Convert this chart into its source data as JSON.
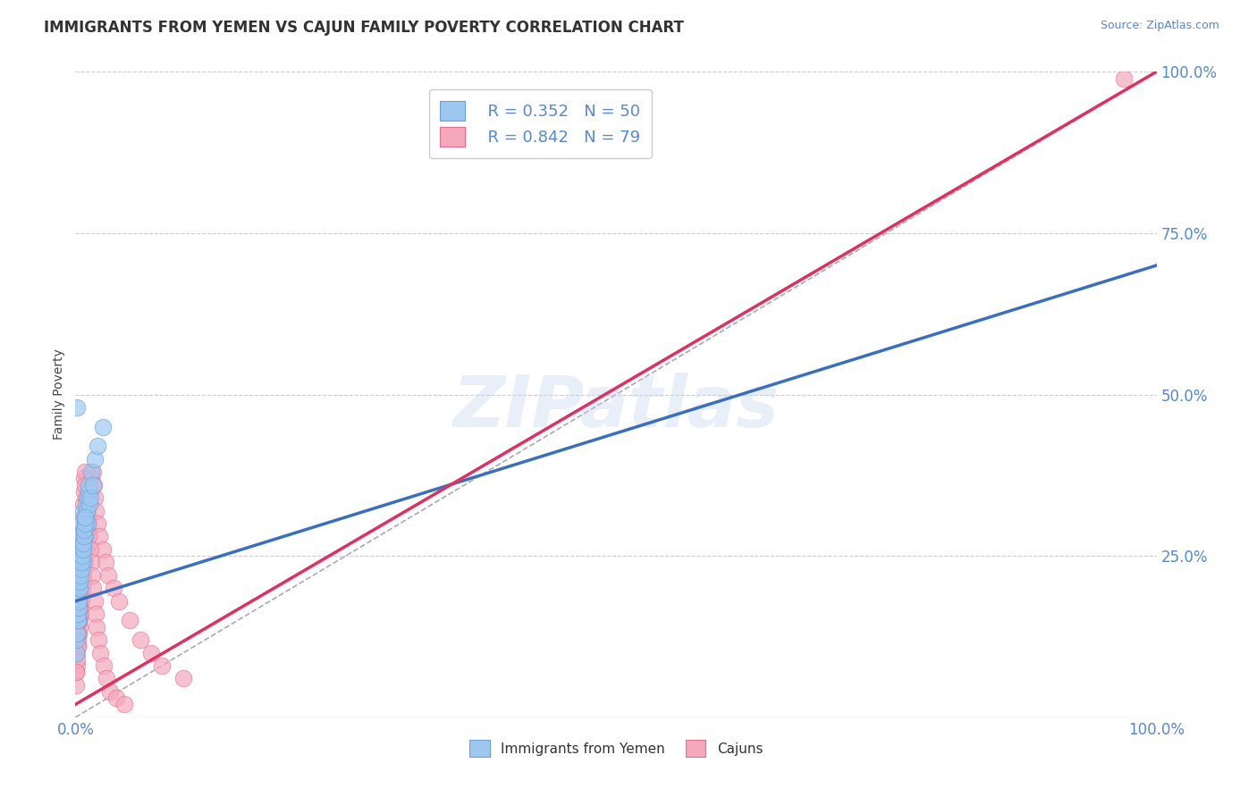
{
  "title": "IMMIGRANTS FROM YEMEN VS CAJUN FAMILY POVERTY CORRELATION CHART",
  "source_text": "Source: ZipAtlas.com",
  "ylabel": "Family Poverty",
  "background_color": "#ffffff",
  "grid_color": "#cccccc",
  "watermark_text": "ZIPatlas",
  "xlim": [
    0,
    100
  ],
  "ylim": [
    0,
    100
  ],
  "yticks": [
    25,
    50,
    75,
    100
  ],
  "xticks": [
    0,
    100
  ],
  "tick_color": "#5588cc",
  "series": [
    {
      "name": "Immigrants from Yemen",
      "R": 0.352,
      "N": 50,
      "color": "#9ec8f0",
      "edge_color": "#6aa0d8",
      "regression_color": "#3a6fbe",
      "points_x": [
        0.1,
        0.2,
        0.15,
        0.3,
        0.25,
        0.4,
        0.35,
        0.5,
        0.45,
        0.6,
        0.55,
        0.7,
        0.65,
        0.8,
        0.75,
        0.9,
        0.85,
        1.0,
        0.95,
        1.1,
        1.05,
        1.2,
        1.15,
        1.3,
        1.25,
        1.5,
        1.4,
        1.8,
        1.6,
        2.0,
        0.05,
        0.08,
        0.12,
        0.18,
        0.22,
        0.28,
        0.32,
        0.38,
        0.42,
        0.48,
        0.52,
        0.58,
        0.62,
        0.68,
        0.72,
        0.78,
        0.82,
        0.88,
        0.92,
        2.5
      ],
      "points_y": [
        20.0,
        15.0,
        48.0,
        18.0,
        22.0,
        20.0,
        25.0,
        23.0,
        28.0,
        27.0,
        30.0,
        24.0,
        26.0,
        29.0,
        32.0,
        31.0,
        28.0,
        30.0,
        33.0,
        34.0,
        32.0,
        35.0,
        30.0,
        33.0,
        36.0,
        38.0,
        34.0,
        40.0,
        36.0,
        42.0,
        10.0,
        12.0,
        13.0,
        15.0,
        16.0,
        17.0,
        18.0,
        20.0,
        21.0,
        22.0,
        23.0,
        24.0,
        25.0,
        26.0,
        27.0,
        28.0,
        29.0,
        30.0,
        31.0,
        45.0
      ]
    },
    {
      "name": "Cajuns",
      "R": 0.842,
      "N": 79,
      "color": "#f5a8bc",
      "edge_color": "#e07090",
      "regression_color": "#e03060",
      "points_x": [
        0.1,
        0.15,
        0.2,
        0.25,
        0.3,
        0.35,
        0.4,
        0.45,
        0.5,
        0.55,
        0.6,
        0.65,
        0.7,
        0.75,
        0.8,
        0.85,
        0.9,
        0.95,
        1.0,
        1.1,
        1.2,
        1.3,
        1.4,
        1.5,
        1.6,
        1.7,
        1.8,
        1.9,
        2.0,
        2.2,
        2.5,
        2.8,
        3.0,
        3.5,
        4.0,
        5.0,
        6.0,
        7.0,
        8.0,
        10.0,
        0.08,
        0.12,
        0.18,
        0.22,
        0.28,
        0.32,
        0.38,
        0.42,
        0.48,
        0.52,
        0.58,
        0.62,
        0.68,
        0.72,
        0.78,
        0.82,
        0.88,
        0.92,
        0.98,
        1.05,
        1.15,
        1.25,
        1.35,
        1.45,
        1.55,
        1.65,
        1.75,
        1.85,
        1.95,
        2.1,
        2.3,
        2.6,
        2.9,
        3.2,
        3.8,
        4.5,
        0.05,
        0.07,
        97.0
      ],
      "points_y": [
        8.0,
        10.0,
        11.0,
        12.0,
        13.0,
        14.0,
        15.0,
        16.0,
        17.0,
        18.0,
        19.0,
        20.0,
        21.0,
        22.0,
        23.0,
        24.0,
        25.0,
        26.0,
        27.0,
        29.0,
        31.0,
        33.0,
        35.0,
        37.0,
        38.0,
        36.0,
        34.0,
        32.0,
        30.0,
        28.0,
        26.0,
        24.0,
        22.0,
        20.0,
        18.0,
        15.0,
        12.0,
        10.0,
        8.0,
        6.0,
        7.0,
        9.0,
        11.0,
        13.0,
        15.0,
        17.0,
        19.0,
        21.0,
        23.0,
        25.0,
        27.0,
        29.0,
        31.0,
        33.0,
        35.0,
        37.0,
        38.0,
        36.0,
        34.0,
        32.0,
        30.0,
        28.0,
        26.0,
        24.0,
        22.0,
        20.0,
        18.0,
        16.0,
        14.0,
        12.0,
        10.0,
        8.0,
        6.0,
        4.0,
        3.0,
        2.0,
        5.0,
        7.0,
        99.0
      ]
    }
  ],
  "title_fontsize": 12,
  "source_fontsize": 9,
  "tick_fontsize": 12,
  "ylabel_fontsize": 10,
  "legend_fontsize": 13
}
